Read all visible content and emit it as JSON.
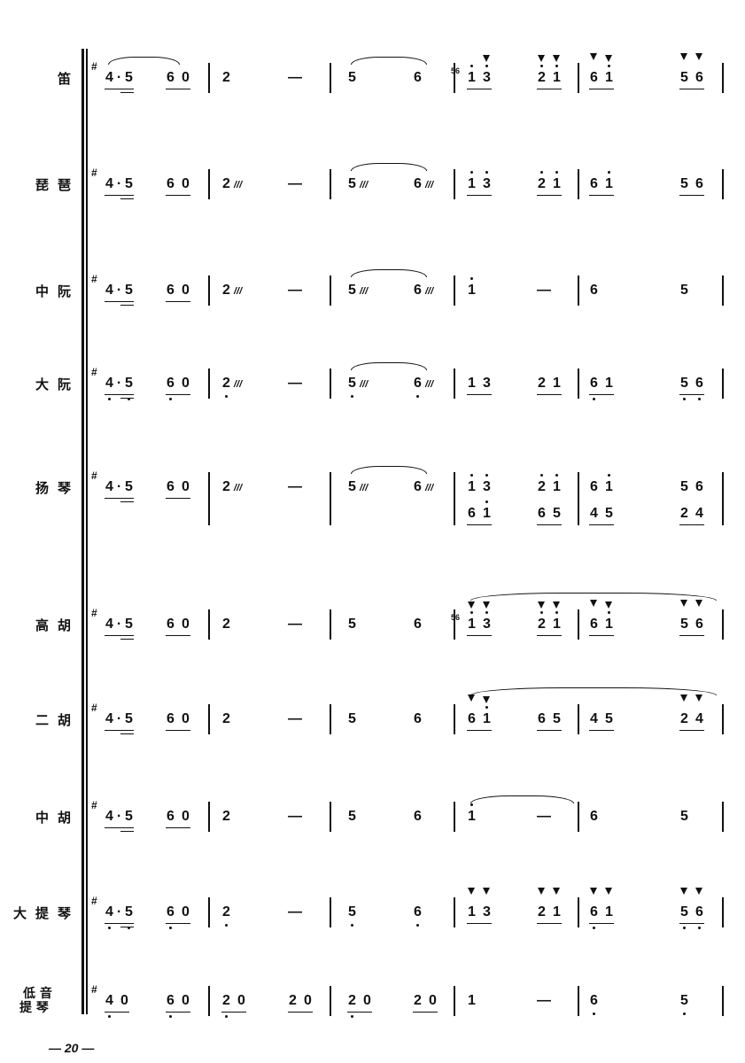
{
  "page_number": "— 20 —",
  "key_mark": "#",
  "tremolo_mark": "///",
  "rows": [
    {
      "label": "笛",
      "notes": [
        {
          "t": "4·5",
          "u": 2
        },
        {
          "t": "6 0",
          "u": 1
        },
        {
          "t": "2"
        },
        {
          "t": "—"
        },
        {
          "t": "5"
        },
        {
          "t": "6"
        },
        {
          "t": "1 3",
          "u": 1,
          "hi": [
            0,
            2
          ],
          "acc": [
            2
          ],
          "grace": "56"
        },
        {
          "t": "2 1",
          "u": 1,
          "hi": [
            0,
            2
          ],
          "acc": [
            0,
            2
          ]
        },
        {
          "t": "6 1",
          "u": 1,
          "hi": [
            2
          ],
          "acc": [
            0,
            2
          ]
        },
        {
          "t": "5 6",
          "u": 1,
          "acc": [
            0,
            2
          ]
        }
      ],
      "slurs": [
        [
          0,
          1
        ],
        [
          4,
          5
        ]
      ]
    },
    {
      "label": "琵琶",
      "notes": [
        {
          "t": "4·5",
          "u": 2
        },
        {
          "t": "6 0",
          "u": 1
        },
        {
          "t": "2",
          "trem": true
        },
        {
          "t": "—"
        },
        {
          "t": "5",
          "trem": true
        },
        {
          "t": "6",
          "trem": true
        },
        {
          "t": "1 3",
          "u": 1,
          "hi": [
            0,
            2
          ]
        },
        {
          "t": "2 1",
          "u": 1,
          "hi": [
            0,
            2
          ]
        },
        {
          "t": "6 1",
          "u": 1,
          "hi": [
            2
          ]
        },
        {
          "t": "5 6",
          "u": 1
        }
      ],
      "slurs": [
        [
          4,
          5
        ]
      ]
    },
    {
      "label": "中阮",
      "notes": [
        {
          "t": "4·5",
          "u": 2
        },
        {
          "t": "6 0",
          "u": 1
        },
        {
          "t": "2",
          "trem": true
        },
        {
          "t": "—"
        },
        {
          "t": "5",
          "trem": true
        },
        {
          "t": "6",
          "trem": true
        },
        {
          "t": "1",
          "hi": [
            0
          ]
        },
        {
          "t": "—"
        },
        {
          "t": "6"
        },
        {
          "t": "5"
        }
      ],
      "slurs": [
        [
          4,
          5
        ]
      ]
    },
    {
      "label": "大阮",
      "notes": [
        {
          "t": "4·5",
          "u": 2,
          "lo": [
            0,
            2
          ]
        },
        {
          "t": "6 0",
          "u": 1,
          "lo": [
            0
          ]
        },
        {
          "t": "2",
          "trem": true,
          "lo": [
            0
          ]
        },
        {
          "t": "—"
        },
        {
          "t": "5",
          "trem": true,
          "lo": [
            0
          ]
        },
        {
          "t": "6",
          "trem": true,
          "lo": [
            0
          ]
        },
        {
          "t": "1 3",
          "u": 1
        },
        {
          "t": "2 1",
          "u": 1
        },
        {
          "t": "6 1",
          "u": 1,
          "lo": [
            0
          ]
        },
        {
          "t": "5 6",
          "u": 1,
          "lo": [
            0,
            2
          ]
        }
      ],
      "slurs": [
        [
          4,
          5
        ]
      ]
    },
    {
      "label": "扬琴",
      "notes": [
        {
          "t": "4·5",
          "u": 2
        },
        {
          "t": "6 0",
          "u": 1
        },
        {
          "t": "2",
          "trem": true
        },
        {
          "t": "—"
        },
        {
          "t": "5",
          "trem": true
        },
        {
          "t": "6",
          "trem": true
        },
        {
          "t": "1 3",
          "hi": [
            0,
            2
          ]
        },
        {
          "t": "2 1",
          "hi": [
            0,
            2
          ]
        },
        {
          "t": "6 1",
          "hi": [
            2
          ]
        },
        {
          "t": "5 6"
        }
      ],
      "second": [
        {
          "t": "6 1",
          "u": 1,
          "hi": [
            2
          ]
        },
        {
          "t": "6 5",
          "u": 1
        },
        {
          "t": "4 5",
          "u": 1
        },
        {
          "t": "2 4",
          "u": 1
        }
      ],
      "slurs": [
        [
          4,
          5
        ]
      ]
    },
    {
      "label": "高胡",
      "notes": [
        {
          "t": "4·5",
          "u": 2
        },
        {
          "t": "6 0",
          "u": 1
        },
        {
          "t": "2"
        },
        {
          "t": "—"
        },
        {
          "t": "5"
        },
        {
          "t": "6"
        },
        {
          "t": "1 3",
          "u": 1,
          "hi": [
            0,
            2
          ],
          "acc": [
            0,
            2
          ],
          "grace": "56"
        },
        {
          "t": "2 1",
          "u": 1,
          "hi": [
            0,
            2
          ],
          "acc": [
            0,
            2
          ]
        },
        {
          "t": "6 1",
          "u": 1,
          "hi": [
            2
          ],
          "acc": [
            0,
            2
          ]
        },
        {
          "t": "5 6",
          "u": 1,
          "acc": [
            0,
            2
          ]
        }
      ],
      "slurs": [
        [
          6,
          9
        ]
      ]
    },
    {
      "label": "二胡",
      "notes": [
        {
          "t": "4·5",
          "u": 2
        },
        {
          "t": "6 0",
          "u": 1
        },
        {
          "t": "2"
        },
        {
          "t": "—"
        },
        {
          "t": "5"
        },
        {
          "t": "6"
        },
        {
          "t": "6 1",
          "u": 1,
          "hi": [
            2
          ],
          "acc": [
            0,
            2
          ]
        },
        {
          "t": "6 5",
          "u": 1
        },
        {
          "t": "4 5",
          "u": 1
        },
        {
          "t": "2 4",
          "u": 1,
          "acc": [
            0,
            2
          ]
        }
      ],
      "slurs": [
        [
          6,
          9
        ]
      ]
    },
    {
      "label": "中胡",
      "notes": [
        {
          "t": "4·5",
          "u": 2
        },
        {
          "t": "6 0",
          "u": 1
        },
        {
          "t": "2"
        },
        {
          "t": "—"
        },
        {
          "t": "5"
        },
        {
          "t": "6"
        },
        {
          "t": "1",
          "hi": [
            0
          ]
        },
        {
          "t": "—"
        },
        {
          "t": "6"
        },
        {
          "t": "5"
        }
      ],
      "slurs": [
        [
          6,
          7
        ]
      ]
    },
    {
      "label": "大提琴",
      "notes": [
        {
          "t": "4·5",
          "u": 2,
          "lo": [
            0,
            2
          ]
        },
        {
          "t": "6 0",
          "u": 1,
          "lo": [
            0
          ]
        },
        {
          "t": "2",
          "lo": [
            0
          ]
        },
        {
          "t": "—"
        },
        {
          "t": "5",
          "lo": [
            0
          ]
        },
        {
          "t": "6",
          "lo": [
            0
          ]
        },
        {
          "t": "1 3",
          "u": 1,
          "acc": [
            0,
            2
          ]
        },
        {
          "t": "2 1",
          "u": 1,
          "acc": [
            0,
            2
          ]
        },
        {
          "t": "6 1",
          "u": 1,
          "acc": [
            0,
            2
          ],
          "lo": [
            0
          ]
        },
        {
          "t": "5 6",
          "u": 1,
          "acc": [
            0,
            2
          ],
          "lo": [
            0,
            2
          ]
        }
      ],
      "slurs": []
    },
    {
      "label": "低音提琴",
      "label_lines": [
        "低 音",
        "提 琴"
      ],
      "notes": [
        {
          "t": "4 0",
          "u": 1,
          "lo": [
            0
          ]
        },
        {
          "t": "6 0",
          "u": 1,
          "lo": [
            0
          ]
        },
        {
          "t": "2 0",
          "u": 1,
          "lo": [
            0
          ]
        },
        {
          "t": "2 0",
          "u": 1
        },
        {
          "t": "2 0",
          "u": 1,
          "lo": [
            0
          ]
        },
        {
          "t": "2 0",
          "u": 1
        },
        {
          "t": "1"
        },
        {
          "t": "—"
        },
        {
          "t": "6",
          "lo": [
            0
          ]
        },
        {
          "t": "5",
          "lo": [
            0
          ]
        }
      ],
      "slurs": []
    }
  ]
}
